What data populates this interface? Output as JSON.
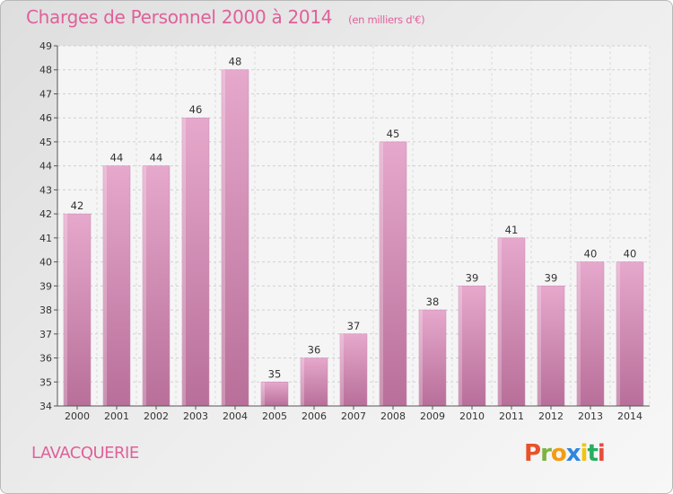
{
  "header": {
    "title": "Charges de Personnel 2000 à 2014",
    "subtitle": "(en milliers d'€)"
  },
  "footer": {
    "commune": "LAVACQUERIE",
    "logo_letters": [
      "P",
      "r",
      "o",
      "x",
      "i",
      "t",
      "i"
    ]
  },
  "colors": {
    "bar_top": "#e6a8cc",
    "bar_bottom": "#b86f99",
    "accent": "#e0609a",
    "logo": [
      "#e8522a",
      "#7cb342",
      "#f39c12",
      "#2e86de",
      "#f1c40f",
      "#27ae60",
      "#e74c3c"
    ]
  },
  "chart_data": {
    "type": "bar",
    "title": "Charges de Personnel 2000 à 2014",
    "subtitle": "(en milliers d'€)",
    "categories": [
      "2000",
      "2001",
      "2002",
      "2003",
      "2004",
      "2005",
      "2006",
      "2007",
      "2008",
      "2009",
      "2010",
      "2011",
      "2012",
      "2013",
      "2014"
    ],
    "values": [
      42,
      44,
      44,
      46,
      48,
      35,
      36,
      37,
      45,
      38,
      39,
      41,
      39,
      40,
      40
    ],
    "ylim": [
      34,
      49
    ],
    "yticks": [
      34,
      35,
      36,
      37,
      38,
      39,
      40,
      41,
      42,
      43,
      44,
      45,
      46,
      47,
      48,
      49
    ],
    "grid": true,
    "xlabel": "",
    "ylabel": ""
  }
}
